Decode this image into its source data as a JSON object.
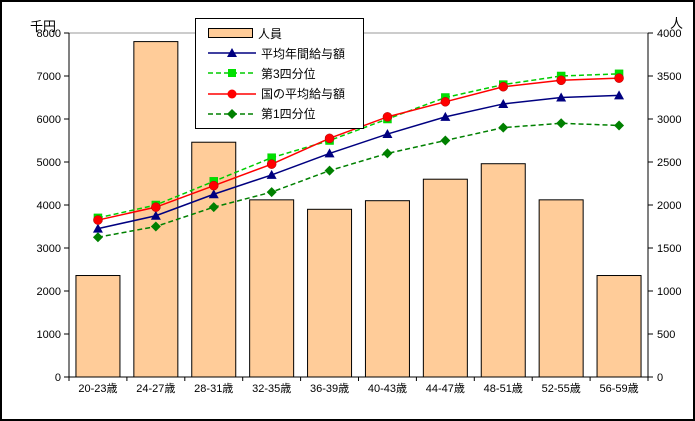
{
  "chart_data": {
    "type": "combo-bar-line",
    "title": "",
    "categories": [
      "20-23歳",
      "24-27歳",
      "28-31歳",
      "32-35歳",
      "36-39歳",
      "40-43歳",
      "44-47歳",
      "48-51歳",
      "52-55歳",
      "56-59歳"
    ],
    "left_axis": {
      "unit": "千円",
      "min": 0,
      "max": 8000,
      "step": 1000
    },
    "right_axis": {
      "unit": "人",
      "min": 0,
      "max": 4000,
      "step": 500
    },
    "grid": "top-line-only",
    "legend_position": "top-center",
    "bar_series": {
      "key": "personnel",
      "name": "人員",
      "axis": "right",
      "fill": "#FFCC99",
      "border": "#000000",
      "values": [
        1180,
        3900,
        2730,
        2060,
        1950,
        2050,
        2300,
        2480,
        2060,
        1180
      ]
    },
    "line_series": [
      {
        "key": "average-annual-salary",
        "name": "平均年間給与額",
        "axis": "left",
        "color": "#000080",
        "marker": "triangle",
        "dash": "solid",
        "values": [
          3450,
          3750,
          4250,
          4700,
          5200,
          5650,
          6050,
          6350,
          6500,
          6550
        ]
      },
      {
        "key": "third-quartile",
        "name": "第3四分位",
        "axis": "left",
        "color": "#00CC00",
        "marker": "square",
        "marker_fill": "#00E000",
        "dash": "dashed",
        "values": [
          3700,
          4000,
          4550,
          5100,
          5500,
          6000,
          6500,
          6800,
          7000,
          7050
        ]
      },
      {
        "key": "national-average-salary",
        "name": "国の平均給与額",
        "axis": "left",
        "color": "#FF0000",
        "marker": "circle",
        "dash": "solid",
        "values": [
          3650,
          3950,
          4450,
          4950,
          5550,
          6050,
          6400,
          6750,
          6900,
          6950
        ]
      },
      {
        "key": "first-quartile",
        "name": "第1四分位",
        "axis": "left",
        "color": "#008000",
        "marker": "diamond",
        "dash": "dashed",
        "values": [
          3250,
          3500,
          3950,
          4300,
          4800,
          5200,
          5500,
          5800,
          5900,
          5850
        ]
      }
    ]
  }
}
